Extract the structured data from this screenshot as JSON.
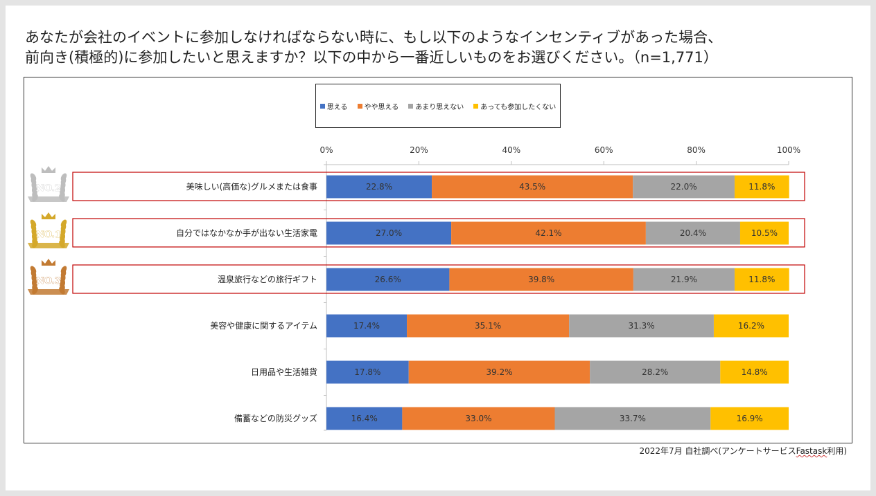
{
  "title_lines": [
    "あなたが会社のイベントに参加しなければならない時に、もし以下のようなインセンティブがあった場合、",
    "前向き(積極的)に参加したいと思えますか？以下の中から一番近しいものをお選びください。（n=1,771）"
  ],
  "source": {
    "prefix": "2022年7月 自社調べ(アンケートサービス",
    "brand": "Fastask",
    "suffix": "利用)"
  },
  "rank_badges": [
    {
      "row": 0,
      "label": "NO.2",
      "icon": "silver-laurel-crown-icon",
      "color": "#bdbdbd"
    },
    {
      "row": 1,
      "label": "NO.1",
      "icon": "gold-laurel-crown-icon",
      "color": "#d4a82a"
    },
    {
      "row": 2,
      "label": "NO.3",
      "icon": "bronze-laurel-crown-icon",
      "color": "#c27a32"
    }
  ],
  "chart_data": {
    "type": "bar",
    "orientation": "horizontal",
    "stacked": true,
    "categories": [
      "美味しい(高価な)グルメまたは食事",
      "自分ではなかなか手が出ない生活家電",
      "温泉旅行などの旅行ギフト",
      "美容や健康に関するアイテム",
      "日用品や生活雑貨",
      "備蓄などの防災グッズ"
    ],
    "series": [
      {
        "name": "思える",
        "color": "#4472c4",
        "values": [
          22.8,
          27.0,
          26.6,
          17.4,
          17.8,
          16.4
        ],
        "labels": [
          "22.8%",
          "27.0%",
          "26.6%",
          "17.4%",
          "17.8%",
          "16.4%"
        ]
      },
      {
        "name": "やや思える",
        "color": "#ed7d31",
        "values": [
          43.5,
          42.1,
          39.8,
          35.1,
          39.2,
          33.0
        ],
        "labels": [
          "43.5%",
          "42.1%",
          "39.8%",
          "35.1%",
          "39.2%",
          "33.0%"
        ]
      },
      {
        "name": "あまり思えない",
        "color": "#a5a5a5",
        "values": [
          22.0,
          20.4,
          21.9,
          31.3,
          28.2,
          33.7
        ],
        "labels": [
          "22.0%",
          "20.4%",
          "21.9%",
          "31.3%",
          "28.2%",
          "33.7%"
        ]
      },
      {
        "name": "あっても参加したくない",
        "color": "#ffc000",
        "values": [
          11.8,
          10.5,
          11.8,
          16.2,
          14.8,
          16.9
        ],
        "labels": [
          "11.8%",
          "10.5%",
          "11.8%",
          "16.2%",
          "14.8%",
          "16.9%"
        ]
      }
    ],
    "xlim": [
      0,
      100
    ],
    "xticks": [
      "0%",
      "20%",
      "40%",
      "60%",
      "80%",
      "100%"
    ],
    "highlighted_rows": [
      0,
      1,
      2
    ],
    "highlight_color": "#c00000",
    "legend_position": "top",
    "grid": false
  }
}
